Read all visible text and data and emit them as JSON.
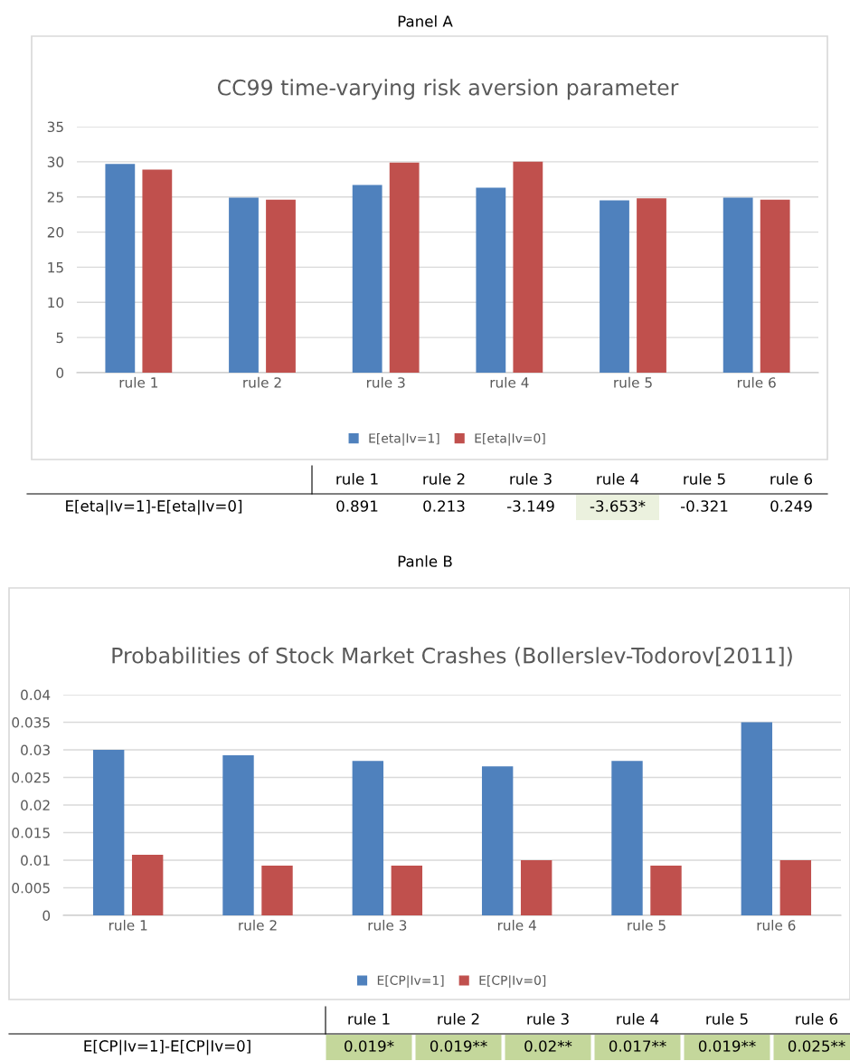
{
  "chart_data": [
    {
      "type": "bar",
      "title": "CC99 time-varying risk aversion parameter",
      "categories": [
        "rule 1",
        "rule 2",
        "rule 3",
        "rule 4",
        "rule 5",
        "rule 6"
      ],
      "series": [
        {
          "name": "E[eta|Iv=1]",
          "color": "#4f81bd",
          "values": [
            29.7,
            24.9,
            26.7,
            26.3,
            24.5,
            24.9
          ]
        },
        {
          "name": "E[eta|Iv=0]",
          "color": "#c0504d",
          "values": [
            28.9,
            24.6,
            29.9,
            30.0,
            24.8,
            24.6
          ]
        }
      ],
      "ylim": [
        0,
        35
      ],
      "yticks": [
        0,
        5,
        10,
        15,
        20,
        25,
        30,
        35
      ],
      "grid": "y",
      "legend": "bottom",
      "annotations": [
        "Panel A",
        "E[eta|Iv=1]-E[eta|Iv=0]",
        "0.891",
        "0.213",
        "-3.149",
        "-3.653*",
        "-0.321",
        "0.249"
      ]
    },
    {
      "type": "bar",
      "title": "Probabilities of Stock Market Crashes (Bollerslev-Todorov[2011])",
      "categories": [
        "rule 1",
        "rule 2",
        "rule 3",
        "rule 4",
        "rule 5",
        "rule 6"
      ],
      "series": [
        {
          "name": "E[CP|Iv=1]",
          "color": "#4f81bd",
          "values": [
            0.03,
            0.029,
            0.028,
            0.027,
            0.028,
            0.035
          ]
        },
        {
          "name": "E[CP|Iv=0]",
          "color": "#c0504d",
          "values": [
            0.011,
            0.009,
            0.009,
            0.01,
            0.009,
            0.01
          ]
        }
      ],
      "ylim": [
        0,
        0.04
      ],
      "yticks": [
        0,
        0.005,
        0.01,
        0.015,
        0.02,
        0.025,
        0.03,
        0.035,
        0.04
      ],
      "grid": "y",
      "legend": "bottom",
      "annotations": [
        "Panle B",
        "E[CP|Iv=1]-E[CP|Iv=0]",
        "0.019*",
        "0.019**",
        "0.02**",
        "0.017**",
        "0.019**",
        "0.025**"
      ]
    }
  ]
}
